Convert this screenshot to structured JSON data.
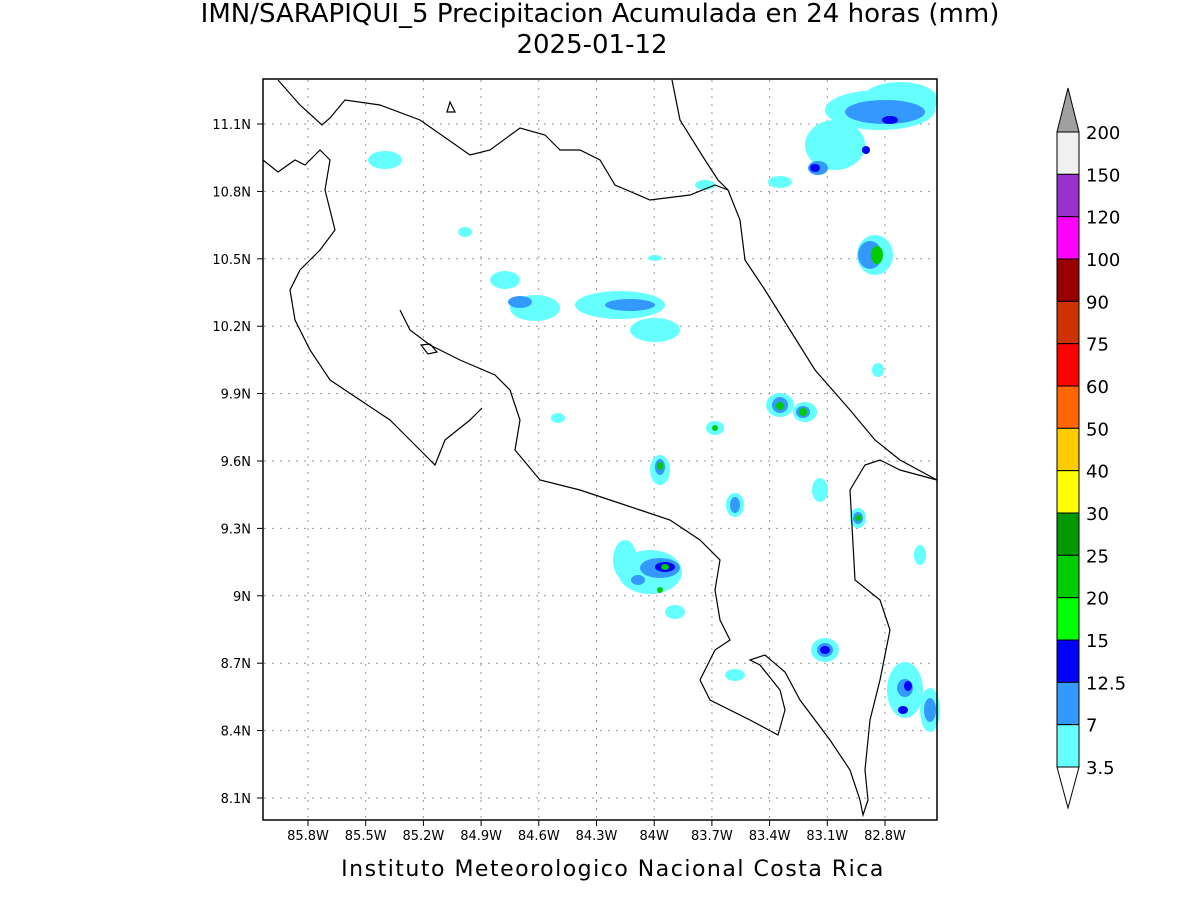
{
  "header": {
    "title": "IMN/SARAPIQUI_5 Precipitacion Acumulada en 24 horas (mm)",
    "subtitle": "2025-01-12"
  },
  "map": {
    "lon_labels": [
      "85.8W",
      "85.5W",
      "85.2W",
      "84.9W",
      "84.6W",
      "84.3W",
      "84W",
      "83.7W",
      "83.4W",
      "83.1W",
      "82.8W"
    ],
    "lat_labels": [
      "11.1N",
      "10.8N",
      "10.5N",
      "10.2N",
      "9.9N",
      "9.6N",
      "9.3N",
      "9N",
      "8.7N",
      "8.4N",
      "8.1N"
    ]
  },
  "colorbar": {
    "labels": [
      "200",
      "150",
      "120",
      "100",
      "90",
      "75",
      "60",
      "50",
      "40",
      "30",
      "25",
      "20",
      "15",
      "12.5",
      "7",
      "3.5"
    ],
    "colors": [
      "#f0f0f0",
      "#9932cc",
      "#ff00ff",
      "#990000",
      "#cc3300",
      "#ff0000",
      "#ff6600",
      "#ffcc00",
      "#ffff00",
      "#009900",
      "#00cc00",
      "#00ff00",
      "#0000ff",
      "#3399ff",
      "#66ffff"
    ]
  },
  "footer": {
    "text": "Instituto Meteorologico Nacional Costa Rica"
  }
}
